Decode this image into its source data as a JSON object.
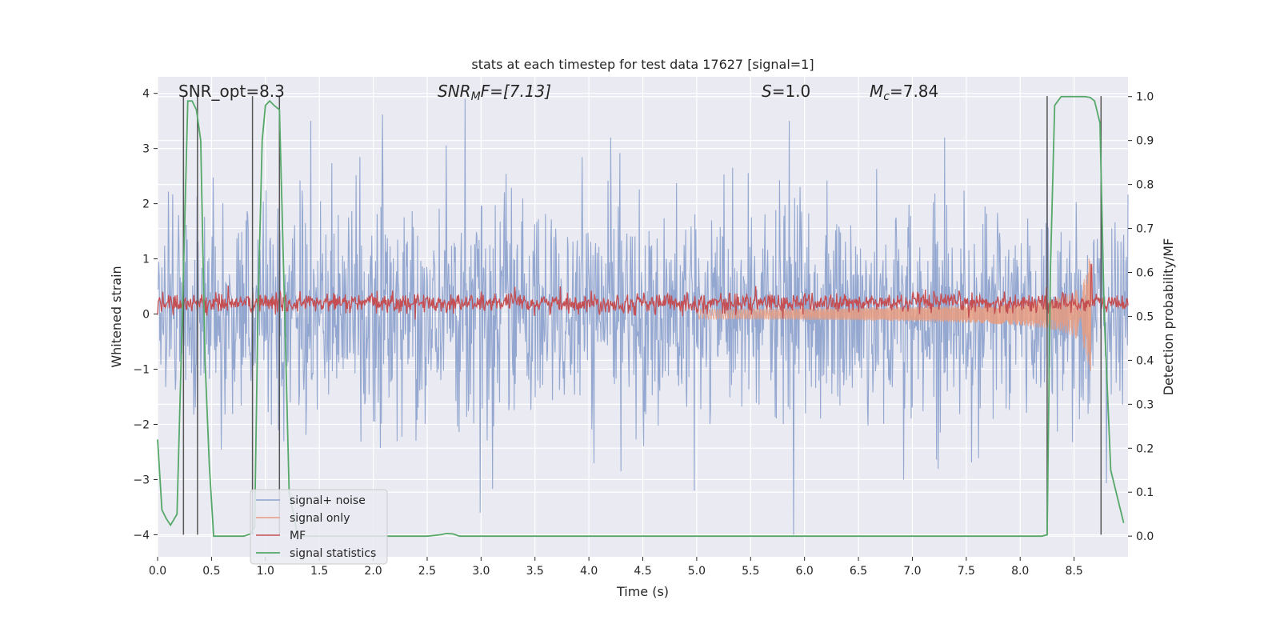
{
  "chart_data": {
    "type": "line",
    "title": "stats at each timestep for test data 17627 [signal=1]",
    "xlabel": "Time (s)",
    "ylabel": "Whitened strain",
    "y2label": "Detection probability/MF",
    "xlim": [
      0.0,
      9.0
    ],
    "ylim": [
      -4.4,
      4.3
    ],
    "y2lim": [
      -0.047,
      1.045
    ],
    "x_ticks": [
      "0.0",
      "0.5",
      "1.0",
      "1.5",
      "2.0",
      "2.5",
      "3.0",
      "3.5",
      "4.0",
      "4.5",
      "5.0",
      "5.5",
      "6.0",
      "6.5",
      "7.0",
      "7.5",
      "8.0",
      "8.5"
    ],
    "y_ticks": [
      "−4",
      "−3",
      "−2",
      "−1",
      "0",
      "1",
      "2",
      "3",
      "4"
    ],
    "y2_ticks": [
      "0.0",
      "0.1",
      "0.2",
      "0.3",
      "0.4",
      "0.5",
      "0.6",
      "0.7",
      "0.8",
      "0.9",
      "1.0"
    ],
    "grid": true,
    "legend_position": "lower-left",
    "annotations": {
      "snr_opt": "SNR_opt=8.3",
      "snr_mf_label": "SNR",
      "snr_mf_sub": "M",
      "snr_mf_rest": "F=[7.13]",
      "s_label": "S",
      "s_rest": "=1.0",
      "mc_label": "M",
      "mc_sub": "c",
      "mc_rest": "=7.84"
    },
    "series": [
      {
        "name": "signal+ noise",
        "color": "#8ea3cd",
        "description_only": false,
        "noise_envelope": {
          "typical_amplitude": 1.5,
          "peak_amplitude": 4.0
        },
        "notable_spikes": [
          [
            0.24,
            3.1
          ],
          [
            1.42,
            3.5
          ],
          [
            2.08,
            2.3
          ],
          [
            2.85,
            3.9
          ],
          [
            2.99,
            -3.6
          ],
          [
            4.2,
            3.2
          ],
          [
            4.98,
            -3.2
          ],
          [
            5.9,
            -4.0
          ],
          [
            5.86,
            3.5
          ],
          [
            6.92,
            -3.0
          ],
          [
            7.3,
            3.2
          ],
          [
            8.25,
            3.4
          ]
        ]
      },
      {
        "name": "signal only",
        "color": "#e89b7f",
        "chirp": {
          "start_x": 5.0,
          "peak_x": 8.66,
          "end_x": 8.68,
          "peak_amplitude": 1.25
        }
      },
      {
        "name": "MF",
        "color": "#c44e52",
        "baseline": 0.2,
        "noise_amplitude": 0.15,
        "peak": [
          8.66,
          1.0
        ]
      },
      {
        "name": "signal statistics",
        "color": "#55a868",
        "axis": "y2",
        "x": [
          0.0,
          0.04,
          0.08,
          0.12,
          0.18,
          0.24,
          0.28,
          0.32,
          0.36,
          0.4,
          0.44,
          0.48,
          0.52,
          0.6,
          0.8,
          0.86,
          0.9,
          0.93,
          0.97,
          1.0,
          1.04,
          1.08,
          1.13,
          1.18,
          1.22,
          1.3,
          1.5,
          2.0,
          2.5,
          2.62,
          2.68,
          2.74,
          2.8,
          3.0,
          4.0,
          5.0,
          6.0,
          7.0,
          8.0,
          8.2,
          8.25,
          8.28,
          8.32,
          8.38,
          8.5,
          8.6,
          8.65,
          8.69,
          8.74,
          8.78,
          8.84,
          8.9,
          8.96
        ],
        "y": [
          0.22,
          0.06,
          0.04,
          0.025,
          0.05,
          0.6,
          0.99,
          0.99,
          0.97,
          0.9,
          0.4,
          0.16,
          0.0,
          0.0,
          0.0,
          0.005,
          0.02,
          0.5,
          0.9,
          0.98,
          0.99,
          0.98,
          0.97,
          0.5,
          0.1,
          0.0,
          0.0,
          0.0,
          0.0,
          0.003,
          0.006,
          0.005,
          0.0,
          0.0,
          0.0,
          0.0,
          0.0,
          0.0,
          0.0,
          0.0,
          0.003,
          0.6,
          0.98,
          1.0,
          1.0,
          1.0,
          0.998,
          0.99,
          0.94,
          0.5,
          0.15,
          0.09,
          0.03
        ]
      }
    ],
    "vertical_markers_x": [
      0.24,
      0.37,
      0.88,
      1.13,
      8.25,
      8.75
    ]
  }
}
